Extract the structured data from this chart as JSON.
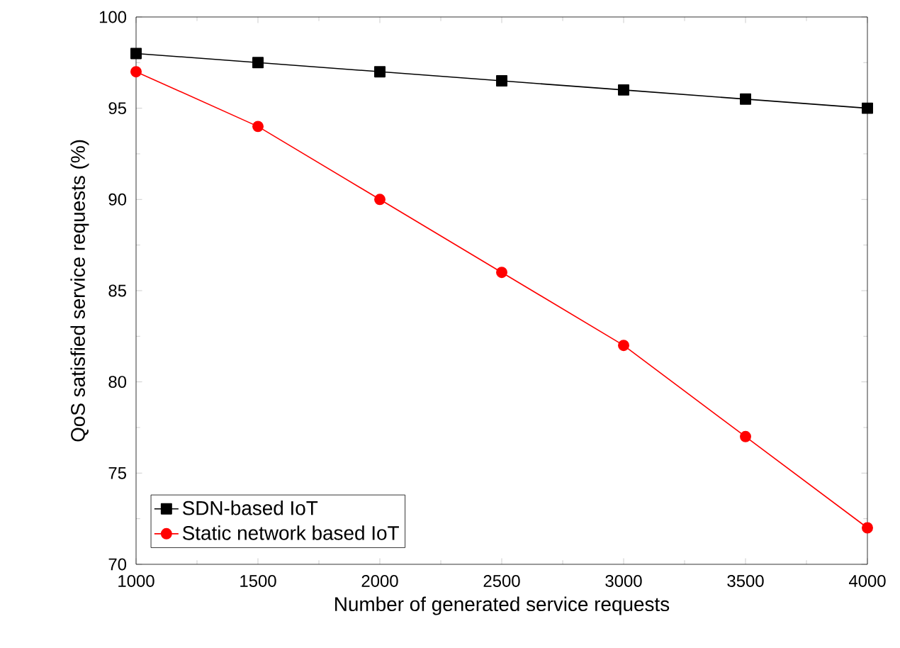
{
  "chart_data": {
    "type": "line",
    "xlabel": "Number of generated service requests",
    "ylabel": "QoS satisfied service requests (%)",
    "x": [
      1000,
      1500,
      2000,
      2500,
      3000,
      3500,
      4000
    ],
    "series": [
      {
        "name": "SDN-based IoT",
        "color": "#000000",
        "marker": "square",
        "values": [
          98,
          97.5,
          97,
          96.5,
          96,
          95.5,
          95
        ]
      },
      {
        "name": "Static network based IoT",
        "color": "#ff0000",
        "marker": "circle",
        "values": [
          97,
          94,
          90,
          86,
          82,
          77,
          72
        ]
      }
    ],
    "xlim": [
      1000,
      4000
    ],
    "xticks": [
      1000,
      1500,
      2000,
      2500,
      3000,
      3500,
      4000
    ],
    "ylim": [
      70,
      100
    ],
    "yticks": [
      70,
      75,
      80,
      85,
      90,
      95,
      100
    ],
    "legend": "bottom left",
    "line_style": "solid"
  }
}
